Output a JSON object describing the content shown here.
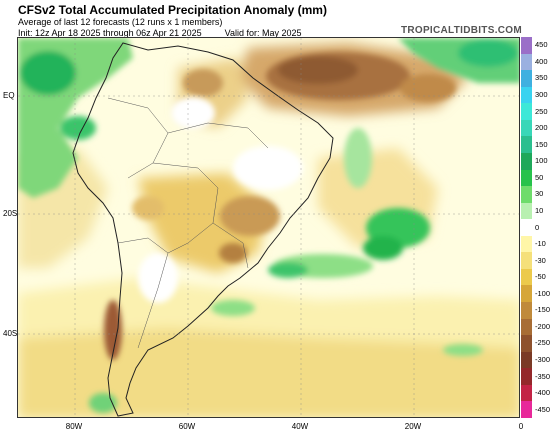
{
  "header": {
    "title": "CFSv2 Total Accumulated Precipitation Anomaly (mm)",
    "subtitle": "Average of last 12 forecasts (12 runs x 1 members)",
    "init_line": "Init: 12z Apr 18 2025 through 06z Apr 21 2025",
    "valid_line": "Valid for: May 2025",
    "site": "TROPICALTIDBITS.COM"
  },
  "map": {
    "lat_labels": [
      "EQ",
      "20S",
      "40S"
    ],
    "lon_labels": [
      "80W",
      "60W",
      "40W",
      "20W",
      "0"
    ]
  },
  "colorbar": {
    "labels": [
      "450",
      "400",
      "350",
      "300",
      "250",
      "200",
      "150",
      "100",
      "50",
      "30",
      "10",
      "0",
      "-10",
      "-30",
      "-50",
      "-100",
      "-150",
      "-200",
      "-250",
      "-300",
      "-350",
      "-400",
      "-450"
    ],
    "colors": [
      "#9a6fc8",
      "#9ab0e0",
      "#3fb0e0",
      "#39d3f0",
      "#3ce8d8",
      "#39d7b8",
      "#2bbf8f",
      "#1ea85a",
      "#27c24b",
      "#6edc6b",
      "#b8f0b0",
      "#ffffff",
      "#fff6a8",
      "#f5e07a",
      "#ecca4c",
      "#d6a639",
      "#c08a3b",
      "#a86d35",
      "#8e512d",
      "#7a3a26",
      "#94282a",
      "#c32345",
      "#e8289a"
    ]
  }
}
